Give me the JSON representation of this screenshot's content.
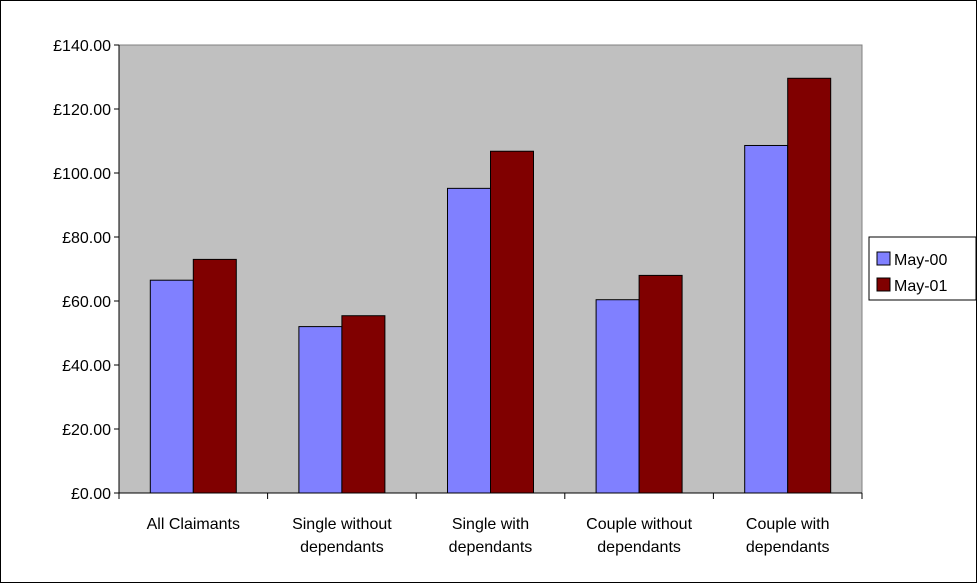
{
  "chart_data": {
    "type": "bar",
    "categories": [
      [
        "All Claimants"
      ],
      [
        "Single without",
        "dependants"
      ],
      [
        "Single with",
        "dependants"
      ],
      [
        "Couple without",
        "dependants"
      ],
      [
        "Couple with",
        "dependants"
      ]
    ],
    "series": [
      {
        "name": "May-00",
        "color": "#8080ff",
        "values": [
          66.5,
          52.0,
          95.2,
          60.4,
          108.6
        ]
      },
      {
        "name": "May-01",
        "color": "#800000",
        "values": [
          73.0,
          55.4,
          106.8,
          68.0,
          129.6
        ]
      }
    ],
    "y_ticks": [
      "£0.00",
      "£20.00",
      "£40.00",
      "£60.00",
      "£80.00",
      "£100.00",
      "£120.00",
      "£140.00"
    ],
    "ylim": [
      0,
      140
    ],
    "y_step": 20,
    "plot_background": "#c0c0c0",
    "gridlines": false,
    "legend_position": "right"
  }
}
